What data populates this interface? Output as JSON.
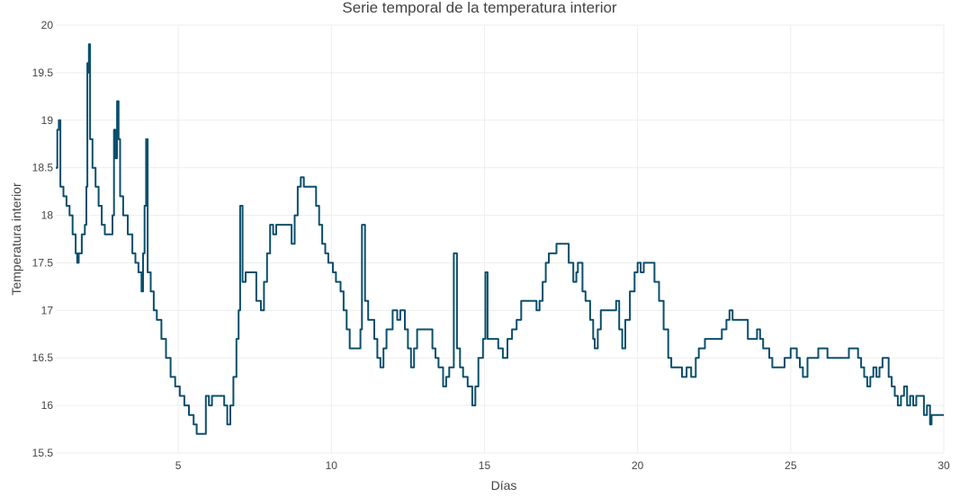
{
  "chart_data": {
    "type": "line",
    "title": "Serie temporal de la temperatura interior",
    "xlabel": "Días",
    "ylabel": "Temperatura interior",
    "xlim": [
      1,
      30
    ],
    "ylim": [
      15.5,
      20
    ],
    "x_ticks": [
      5,
      10,
      15,
      20,
      25,
      30
    ],
    "y_ticks": [
      15.5,
      16,
      16.5,
      17,
      17.5,
      18,
      18.5,
      19,
      19.5,
      20
    ],
    "grid": true,
    "line_color": "#0b4f6c",
    "series": [
      {
        "points": [
          [
            1.0,
            18.5
          ],
          [
            1.05,
            18.9
          ],
          [
            1.1,
            19.0
          ],
          [
            1.15,
            18.3
          ],
          [
            1.25,
            18.2
          ],
          [
            1.35,
            18.1
          ],
          [
            1.45,
            18.0
          ],
          [
            1.55,
            17.8
          ],
          [
            1.65,
            17.6
          ],
          [
            1.7,
            17.5
          ],
          [
            1.75,
            17.6
          ],
          [
            1.85,
            17.8
          ],
          [
            1.95,
            17.9
          ],
          [
            2.0,
            18.3
          ],
          [
            2.03,
            19.6
          ],
          [
            2.05,
            19.5
          ],
          [
            2.08,
            19.8
          ],
          [
            2.12,
            18.8
          ],
          [
            2.2,
            18.5
          ],
          [
            2.3,
            18.3
          ],
          [
            2.4,
            18.1
          ],
          [
            2.5,
            17.9
          ],
          [
            2.6,
            17.8
          ],
          [
            2.8,
            17.8
          ],
          [
            2.85,
            18.0
          ],
          [
            2.9,
            18.9
          ],
          [
            2.95,
            18.6
          ],
          [
            3.0,
            19.2
          ],
          [
            3.05,
            18.8
          ],
          [
            3.1,
            18.2
          ],
          [
            3.2,
            18.0
          ],
          [
            3.35,
            17.8
          ],
          [
            3.5,
            17.6
          ],
          [
            3.6,
            17.5
          ],
          [
            3.7,
            17.4
          ],
          [
            3.8,
            17.2
          ],
          [
            3.85,
            17.6
          ],
          [
            3.9,
            18.1
          ],
          [
            3.95,
            18.8
          ],
          [
            4.0,
            17.4
          ],
          [
            4.1,
            17.2
          ],
          [
            4.2,
            17.0
          ],
          [
            4.3,
            16.9
          ],
          [
            4.45,
            16.7
          ],
          [
            4.6,
            16.5
          ],
          [
            4.75,
            16.3
          ],
          [
            4.9,
            16.2
          ],
          [
            5.05,
            16.1
          ],
          [
            5.2,
            16.0
          ],
          [
            5.35,
            15.9
          ],
          [
            5.5,
            15.8
          ],
          [
            5.6,
            15.7
          ],
          [
            5.8,
            15.7
          ],
          [
            5.9,
            16.1
          ],
          [
            6.0,
            16.0
          ],
          [
            6.1,
            16.1
          ],
          [
            6.2,
            16.1
          ],
          [
            6.4,
            16.1
          ],
          [
            6.5,
            16.0
          ],
          [
            6.6,
            15.8
          ],
          [
            6.7,
            16.0
          ],
          [
            6.8,
            16.3
          ],
          [
            6.9,
            16.7
          ],
          [
            6.97,
            17.0
          ],
          [
            7.02,
            18.1
          ],
          [
            7.1,
            17.3
          ],
          [
            7.2,
            17.4
          ],
          [
            7.4,
            17.4
          ],
          [
            7.55,
            17.1
          ],
          [
            7.7,
            17.0
          ],
          [
            7.8,
            17.3
          ],
          [
            7.9,
            17.6
          ],
          [
            8.0,
            17.9
          ],
          [
            8.1,
            17.8
          ],
          [
            8.2,
            17.9
          ],
          [
            8.35,
            17.9
          ],
          [
            8.5,
            17.9
          ],
          [
            8.7,
            17.7
          ],
          [
            8.8,
            18.0
          ],
          [
            8.9,
            18.3
          ],
          [
            9.0,
            18.4
          ],
          [
            9.1,
            18.3
          ],
          [
            9.3,
            18.3
          ],
          [
            9.5,
            18.1
          ],
          [
            9.6,
            17.9
          ],
          [
            9.7,
            17.7
          ],
          [
            9.8,
            17.6
          ],
          [
            9.9,
            17.5
          ],
          [
            10.05,
            17.4
          ],
          [
            10.15,
            17.3
          ],
          [
            10.3,
            17.2
          ],
          [
            10.4,
            17.0
          ],
          [
            10.5,
            16.8
          ],
          [
            10.6,
            16.6
          ],
          [
            10.8,
            16.6
          ],
          [
            10.95,
            16.8
          ],
          [
            11.0,
            17.9
          ],
          [
            11.1,
            17.1
          ],
          [
            11.2,
            16.9
          ],
          [
            11.4,
            16.7
          ],
          [
            11.5,
            16.5
          ],
          [
            11.6,
            16.4
          ],
          [
            11.7,
            16.6
          ],
          [
            11.8,
            16.8
          ],
          [
            11.9,
            16.8
          ],
          [
            12.0,
            17.0
          ],
          [
            12.15,
            16.9
          ],
          [
            12.25,
            17.0
          ],
          [
            12.4,
            16.8
          ],
          [
            12.5,
            16.6
          ],
          [
            12.6,
            16.4
          ],
          [
            12.7,
            16.6
          ],
          [
            12.8,
            16.8
          ],
          [
            13.2,
            16.8
          ],
          [
            13.3,
            16.6
          ],
          [
            13.4,
            16.5
          ],
          [
            13.5,
            16.4
          ],
          [
            13.65,
            16.2
          ],
          [
            13.75,
            16.3
          ],
          [
            13.85,
            16.4
          ],
          [
            13.95,
            16.4
          ],
          [
            14.0,
            17.6
          ],
          [
            14.1,
            16.6
          ],
          [
            14.2,
            16.4
          ],
          [
            14.3,
            16.3
          ],
          [
            14.45,
            16.2
          ],
          [
            14.6,
            16.0
          ],
          [
            14.7,
            16.2
          ],
          [
            14.8,
            16.5
          ],
          [
            14.95,
            16.7
          ],
          [
            15.03,
            17.4
          ],
          [
            15.1,
            16.7
          ],
          [
            15.3,
            16.7
          ],
          [
            15.45,
            16.6
          ],
          [
            15.6,
            16.5
          ],
          [
            15.75,
            16.7
          ],
          [
            15.9,
            16.8
          ],
          [
            16.05,
            16.9
          ],
          [
            16.2,
            17.1
          ],
          [
            16.5,
            17.1
          ],
          [
            16.7,
            17.0
          ],
          [
            16.8,
            17.1
          ],
          [
            16.9,
            17.3
          ],
          [
            17.0,
            17.5
          ],
          [
            17.1,
            17.6
          ],
          [
            17.2,
            17.6
          ],
          [
            17.35,
            17.7
          ],
          [
            17.6,
            17.7
          ],
          [
            17.75,
            17.5
          ],
          [
            17.9,
            17.3
          ],
          [
            18.0,
            17.4
          ],
          [
            18.05,
            17.5
          ],
          [
            18.2,
            17.2
          ],
          [
            18.3,
            17.1
          ],
          [
            18.45,
            16.9
          ],
          [
            18.55,
            16.7
          ],
          [
            18.6,
            16.6
          ],
          [
            18.7,
            16.8
          ],
          [
            18.8,
            17.0
          ],
          [
            19.2,
            17.0
          ],
          [
            19.3,
            17.1
          ],
          [
            19.4,
            16.8
          ],
          [
            19.5,
            16.6
          ],
          [
            19.6,
            16.9
          ],
          [
            19.75,
            17.2
          ],
          [
            19.9,
            17.4
          ],
          [
            20.0,
            17.5
          ],
          [
            20.1,
            17.4
          ],
          [
            20.2,
            17.5
          ],
          [
            20.4,
            17.5
          ],
          [
            20.55,
            17.3
          ],
          [
            20.7,
            17.1
          ],
          [
            20.85,
            16.8
          ],
          [
            21.0,
            16.5
          ],
          [
            21.1,
            16.4
          ],
          [
            21.3,
            16.4
          ],
          [
            21.45,
            16.3
          ],
          [
            21.6,
            16.4
          ],
          [
            21.75,
            16.3
          ],
          [
            21.9,
            16.5
          ],
          [
            22.0,
            16.6
          ],
          [
            22.2,
            16.7
          ],
          [
            22.6,
            16.7
          ],
          [
            22.75,
            16.8
          ],
          [
            22.9,
            16.9
          ],
          [
            23.0,
            17.0
          ],
          [
            23.1,
            16.9
          ],
          [
            23.25,
            16.9
          ],
          [
            23.5,
            16.9
          ],
          [
            23.6,
            16.7
          ],
          [
            23.8,
            16.7
          ],
          [
            23.9,
            16.8
          ],
          [
            24.0,
            16.7
          ],
          [
            24.1,
            16.6
          ],
          [
            24.3,
            16.5
          ],
          [
            24.4,
            16.4
          ],
          [
            24.7,
            16.4
          ],
          [
            24.8,
            16.5
          ],
          [
            25.0,
            16.6
          ],
          [
            25.2,
            16.5
          ],
          [
            25.3,
            16.4
          ],
          [
            25.4,
            16.3
          ],
          [
            25.55,
            16.5
          ],
          [
            25.75,
            16.5
          ],
          [
            25.9,
            16.6
          ],
          [
            26.1,
            16.6
          ],
          [
            26.2,
            16.5
          ],
          [
            26.8,
            16.5
          ],
          [
            26.9,
            16.6
          ],
          [
            27.1,
            16.6
          ],
          [
            27.2,
            16.5
          ],
          [
            27.3,
            16.4
          ],
          [
            27.4,
            16.3
          ],
          [
            27.5,
            16.2
          ],
          [
            27.6,
            16.3
          ],
          [
            27.7,
            16.4
          ],
          [
            27.8,
            16.3
          ],
          [
            27.9,
            16.4
          ],
          [
            28.0,
            16.5
          ],
          [
            28.1,
            16.5
          ],
          [
            28.2,
            16.3
          ],
          [
            28.3,
            16.2
          ],
          [
            28.4,
            16.1
          ],
          [
            28.5,
            16.0
          ],
          [
            28.6,
            16.1
          ],
          [
            28.7,
            16.2
          ],
          [
            28.8,
            16.0
          ],
          [
            28.9,
            16.1
          ],
          [
            29.0,
            16.0
          ],
          [
            29.1,
            16.1
          ],
          [
            29.25,
            16.1
          ],
          [
            29.35,
            15.9
          ],
          [
            29.45,
            16.0
          ],
          [
            29.55,
            15.8
          ],
          [
            29.6,
            15.9
          ],
          [
            30.0,
            15.9
          ]
        ]
      }
    ]
  }
}
